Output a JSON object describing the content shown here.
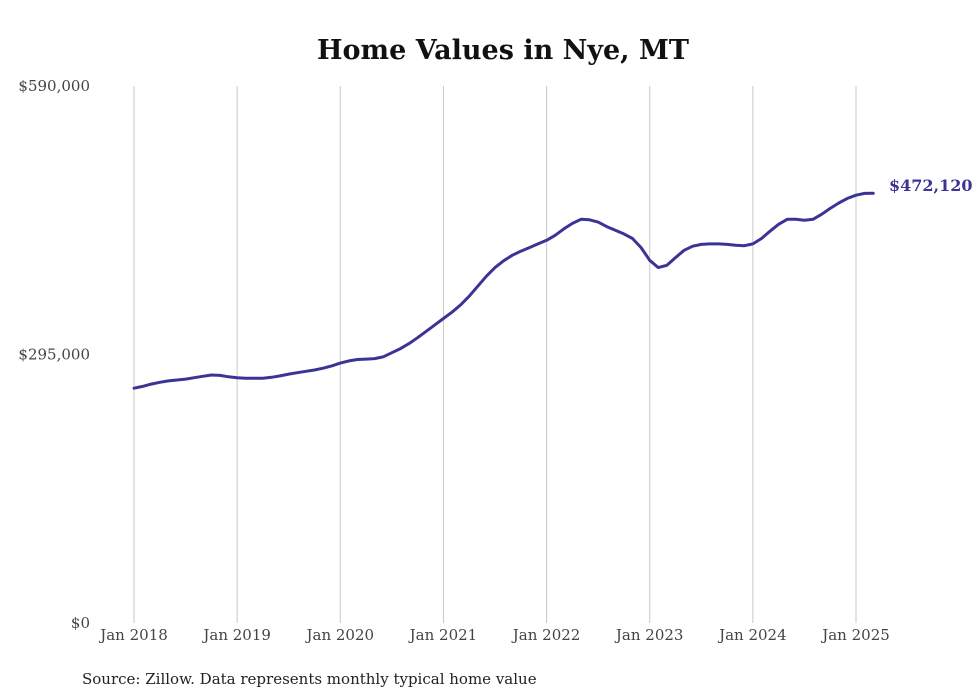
{
  "chart_data": {
    "type": "line",
    "title": "Home Values in Nye, MT",
    "xlabel": "",
    "ylabel": "",
    "ylim": [
      0,
      590000
    ],
    "y_ticks": [
      {
        "value": 0,
        "label": "$0"
      },
      {
        "value": 295000,
        "label": "$295,000"
      },
      {
        "value": 590000,
        "label": "$590,000"
      }
    ],
    "x_ticks": [
      {
        "value": "2018-01",
        "label": "Jan 2018"
      },
      {
        "value": "2019-01",
        "label": "Jan 2019"
      },
      {
        "value": "2020-01",
        "label": "Jan 2020"
      },
      {
        "value": "2021-01",
        "label": "Jan 2021"
      },
      {
        "value": "2022-01",
        "label": "Jan 2022"
      },
      {
        "value": "2023-01",
        "label": "Jan 2023"
      },
      {
        "value": "2024-01",
        "label": "Jan 2024"
      },
      {
        "value": "2025-01",
        "label": "Jan 2025"
      }
    ],
    "grid": "vertical",
    "line_color": "#3b3496",
    "end_label": "$472,120",
    "series": [
      {
        "name": "",
        "points": [
          [
            "2018-01",
            258000
          ],
          [
            "2018-02",
            260000
          ],
          [
            "2018-03",
            262500
          ],
          [
            "2018-04",
            264500
          ],
          [
            "2018-05",
            266000
          ],
          [
            "2018-06",
            267000
          ],
          [
            "2018-07",
            268000
          ],
          [
            "2018-08",
            269500
          ],
          [
            "2018-09",
            271000
          ],
          [
            "2018-10",
            272500
          ],
          [
            "2018-11",
            272000
          ],
          [
            "2018-12",
            270500
          ],
          [
            "2019-01",
            269500
          ],
          [
            "2019-02",
            269000
          ],
          [
            "2019-03",
            269000
          ],
          [
            "2019-04",
            269000
          ],
          [
            "2019-05",
            270000
          ],
          [
            "2019-06",
            271500
          ],
          [
            "2019-07",
            273500
          ],
          [
            "2019-08",
            275000
          ],
          [
            "2019-09",
            276500
          ],
          [
            "2019-10",
            278000
          ],
          [
            "2019-11",
            280000
          ],
          [
            "2019-12",
            282500
          ],
          [
            "2020-01",
            285500
          ],
          [
            "2020-02",
            288000
          ],
          [
            "2020-03",
            289500
          ],
          [
            "2020-04",
            290000
          ],
          [
            "2020-05",
            290500
          ],
          [
            "2020-06",
            292500
          ],
          [
            "2020-07",
            297000
          ],
          [
            "2020-08",
            301500
          ],
          [
            "2020-09",
            307000
          ],
          [
            "2020-10",
            313500
          ],
          [
            "2020-11",
            320500
          ],
          [
            "2020-12",
            327500
          ],
          [
            "2021-01",
            334500
          ],
          [
            "2021-02",
            341500
          ],
          [
            "2021-03",
            349500
          ],
          [
            "2021-04",
            359000
          ],
          [
            "2021-05",
            370000
          ],
          [
            "2021-06",
            381000
          ],
          [
            "2021-07",
            390500
          ],
          [
            "2021-08",
            398000
          ],
          [
            "2021-09",
            404000
          ],
          [
            "2021-10",
            408500
          ],
          [
            "2021-11",
            412500
          ],
          [
            "2021-12",
            416500
          ],
          [
            "2022-01",
            420500
          ],
          [
            "2022-02",
            426000
          ],
          [
            "2022-03",
            433000
          ],
          [
            "2022-04",
            439000
          ],
          [
            "2022-05",
            443500
          ],
          [
            "2022-06",
            443000
          ],
          [
            "2022-07",
            440500
          ],
          [
            "2022-08",
            435500
          ],
          [
            "2022-09",
            431500
          ],
          [
            "2022-10",
            427500
          ],
          [
            "2022-11",
            422500
          ],
          [
            "2022-12",
            412500
          ],
          [
            "2023-01",
            398500
          ],
          [
            "2023-02",
            390500
          ],
          [
            "2023-03",
            393000
          ],
          [
            "2023-04",
            401500
          ],
          [
            "2023-05",
            409500
          ],
          [
            "2023-06",
            414000
          ],
          [
            "2023-07",
            416000
          ],
          [
            "2023-08",
            416500
          ],
          [
            "2023-09",
            416500
          ],
          [
            "2023-10",
            416000
          ],
          [
            "2023-11",
            415000
          ],
          [
            "2023-12",
            414500
          ],
          [
            "2024-01",
            416500
          ],
          [
            "2024-02",
            422500
          ],
          [
            "2024-03",
            430500
          ],
          [
            "2024-04",
            438000
          ],
          [
            "2024-05",
            443500
          ],
          [
            "2024-06",
            443500
          ],
          [
            "2024-07",
            442500
          ],
          [
            "2024-08",
            443500
          ],
          [
            "2024-09",
            449000
          ],
          [
            "2024-10",
            455500
          ],
          [
            "2024-11",
            461500
          ],
          [
            "2024-12",
            466500
          ],
          [
            "2025-01",
            470000
          ],
          [
            "2025-02",
            472000
          ],
          [
            "2025-03",
            472120
          ]
        ]
      }
    ],
    "source": "Source: Zillow. Data represents monthly typical home value"
  }
}
